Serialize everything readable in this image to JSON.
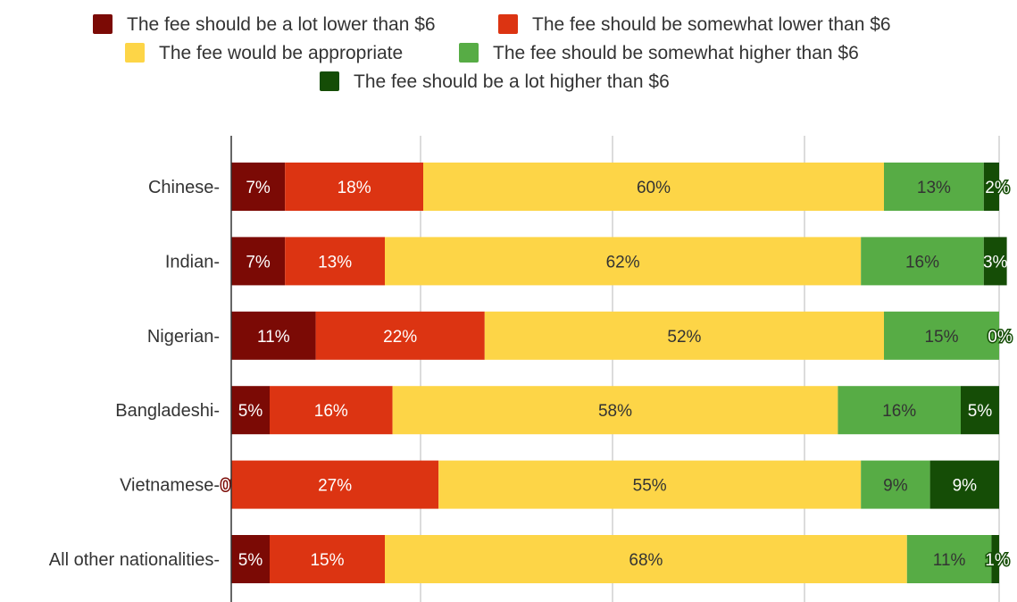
{
  "chart_data": {
    "type": "bar",
    "orientation": "horizontal",
    "stacked": true,
    "normalized_percent": true,
    "grid": true,
    "legend_position": "top",
    "categories": [
      "Chinese",
      "Indian",
      "Nigerian",
      "Bangladeshi",
      "Vietnamese",
      "All other nationalities"
    ],
    "category_labels": [
      "Chinese-",
      "Indian-",
      "Nigerian-",
      "Bangladeshi-",
      "Vietnamese-",
      "All other nationalities-"
    ],
    "series": [
      {
        "name": "The fee should be a lot lower than $6",
        "color": "#7b0a05",
        "label_color": "#ffffff",
        "values": [
          7,
          7,
          11,
          5,
          0,
          5
        ],
        "labels": [
          "7%",
          "7%",
          "11%",
          "5%",
          "0%",
          "5%"
        ]
      },
      {
        "name": "The fee should be somewhat lower than $6",
        "color": "#dc3412",
        "label_color": "#ffffff",
        "values": [
          18,
          13,
          22,
          16,
          27,
          15
        ],
        "labels": [
          "18%",
          "13%",
          "22%",
          "16%",
          "27%",
          "15%"
        ]
      },
      {
        "name": "The fee would be appropriate",
        "color": "#fdd547",
        "label_color": "#333333",
        "values": [
          60,
          62,
          52,
          58,
          55,
          68
        ],
        "labels": [
          "60%",
          "62%",
          "52%",
          "58%",
          "55%",
          "68%"
        ]
      },
      {
        "name": "The fee should be somewhat higher than $6",
        "color": "#57ac45",
        "label_color": "#333333",
        "values": [
          13,
          16,
          15,
          16,
          9,
          11
        ],
        "labels": [
          "13%",
          "16%",
          "15%",
          "16%",
          "9%",
          "11%"
        ]
      },
      {
        "name": "The fee should be a lot higher than $6",
        "color": "#154d06",
        "label_color": "#ffffff",
        "values": [
          2,
          3,
          0,
          5,
          9,
          1
        ],
        "labels": [
          "2%",
          "3%",
          "0%",
          "5%",
          "9%",
          "1%"
        ]
      }
    ],
    "title": "",
    "xlabel": "",
    "ylabel": "",
    "xlim": [
      0,
      100
    ]
  }
}
